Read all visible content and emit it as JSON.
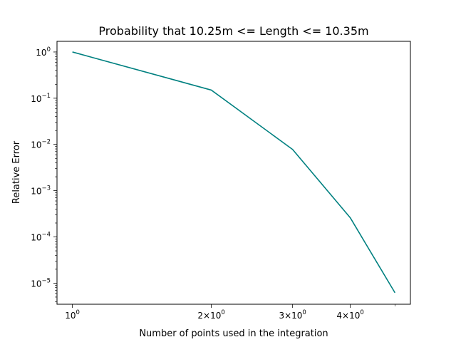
{
  "chart_data": {
    "type": "line",
    "title": "Probability that 10.25m <= Length <= 10.35m",
    "xlabel": "Number of points used in the integration",
    "ylabel": "Relative Error",
    "xscale": "log",
    "yscale": "log",
    "xlim": [
      0.926,
      5.4
    ],
    "ylim": [
      3.5e-06,
      1.7
    ],
    "grid": false,
    "x_ticks": [
      {
        "value": 1,
        "base": "10",
        "exp": "0"
      },
      {
        "value": 2,
        "base": "2×10",
        "exp": "0"
      },
      {
        "value": 3,
        "base": "3×10",
        "exp": "0"
      },
      {
        "value": 4,
        "base": "4×10",
        "exp": "0"
      }
    ],
    "y_ticks": [
      {
        "value": 1.0,
        "base": "10",
        "exp": "0"
      },
      {
        "value": 0.1,
        "base": "10",
        "exp": "−1"
      },
      {
        "value": 0.01,
        "base": "10",
        "exp": "−2"
      },
      {
        "value": 0.001,
        "base": "10",
        "exp": "−3"
      },
      {
        "value": 0.0001,
        "base": "10",
        "exp": "−4"
      },
      {
        "value": 1e-05,
        "base": "10",
        "exp": "−5"
      }
    ],
    "series": [
      {
        "color": "#008080",
        "x": [
          1,
          2,
          3,
          4,
          5
        ],
        "y": [
          1.0,
          0.15,
          0.0078,
          0.00026,
          6.2e-06
        ]
      }
    ]
  }
}
